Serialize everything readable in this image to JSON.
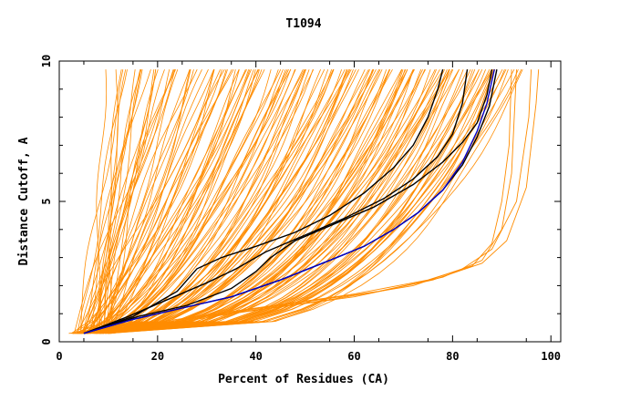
{
  "chart_data": {
    "type": "line",
    "title": "T1094",
    "xlabel": "Percent of Residues (CA)",
    "ylabel": "Distance Cutoff, A",
    "xlim": [
      0,
      102
    ],
    "ylim": [
      0,
      10
    ],
    "x_ticks": [
      0,
      20,
      40,
      60,
      80,
      100
    ],
    "y_ticks": [
      0,
      5,
      10
    ],
    "colors": {
      "background_series": "#ff8c00",
      "highlight_primary": "#0000cc",
      "highlight_secondary": "#000000"
    },
    "background_band": {
      "start_x_min": 2.5,
      "start_x_max": 10,
      "top_y": 9.7,
      "top_x_min": 10,
      "top_x_max": 93,
      "count": 160
    },
    "outlier_series": [
      {
        "points": [
          [
            7,
            0.3
          ],
          [
            20,
            0.7
          ],
          [
            40,
            1.2
          ],
          [
            60,
            1.7
          ],
          [
            75,
            2.2
          ],
          [
            84,
            2.7
          ],
          [
            88,
            3.5
          ],
          [
            90,
            5
          ],
          [
            91.5,
            7
          ],
          [
            92,
            9.7
          ]
        ]
      },
      {
        "points": [
          [
            8,
            0.3
          ],
          [
            25,
            0.8
          ],
          [
            45,
            1.3
          ],
          [
            65,
            1.8
          ],
          [
            78,
            2.3
          ],
          [
            86,
            2.9
          ],
          [
            90,
            4
          ],
          [
            92,
            6
          ],
          [
            93,
            9.7
          ]
        ]
      },
      {
        "points": [
          [
            9,
            0.3
          ],
          [
            30,
            0.9
          ],
          [
            55,
            1.5
          ],
          [
            72,
            2
          ],
          [
            82,
            2.6
          ],
          [
            88,
            3.3
          ],
          [
            93,
            5
          ],
          [
            95.5,
            8
          ],
          [
            96,
            9.7
          ]
        ]
      },
      {
        "points": [
          [
            10,
            0.3
          ],
          [
            35,
            1
          ],
          [
            60,
            1.6
          ],
          [
            76,
            2.2
          ],
          [
            86,
            2.8
          ],
          [
            91,
            3.6
          ],
          [
            95,
            5.5
          ],
          [
            97,
            8.5
          ],
          [
            97.5,
            9.7
          ]
        ]
      }
    ],
    "series": [
      {
        "color": "#0000cc",
        "points": [
          [
            5,
            0.3
          ],
          [
            15,
            0.8
          ],
          [
            25,
            1.2
          ],
          [
            35,
            1.6
          ],
          [
            45,
            2.2
          ],
          [
            55,
            2.9
          ],
          [
            62,
            3.4
          ],
          [
            68,
            4.0
          ],
          [
            73,
            4.6
          ],
          [
            78,
            5.4
          ],
          [
            82,
            6.4
          ],
          [
            85,
            7.5
          ],
          [
            87,
            8.5
          ],
          [
            88.5,
            9.7
          ]
        ]
      },
      {
        "color": "#000000",
        "points": [
          [
            5,
            0.3
          ],
          [
            15,
            0.9
          ],
          [
            24,
            1.8
          ],
          [
            28,
            2.6
          ],
          [
            33,
            3.0
          ],
          [
            40,
            3.4
          ],
          [
            48,
            3.9
          ],
          [
            55,
            4.5
          ],
          [
            62,
            5.3
          ],
          [
            68,
            6.2
          ],
          [
            72,
            7.0
          ],
          [
            75,
            8.0
          ],
          [
            77,
            9.0
          ],
          [
            78,
            9.7
          ]
        ]
      },
      {
        "color": "#000000",
        "points": [
          [
            5,
            0.3
          ],
          [
            14,
            0.9
          ],
          [
            22,
            1.5
          ],
          [
            30,
            2.1
          ],
          [
            36,
            2.6
          ],
          [
            42,
            3.2
          ],
          [
            50,
            3.8
          ],
          [
            58,
            4.4
          ],
          [
            66,
            5.1
          ],
          [
            72,
            5.8
          ],
          [
            77,
            6.6
          ],
          [
            80,
            7.4
          ],
          [
            82,
            8.5
          ],
          [
            83,
            9.7
          ]
        ]
      },
      {
        "color": "#000000",
        "points": [
          [
            5,
            0.3
          ],
          [
            16,
            0.9
          ],
          [
            26,
            1.3
          ],
          [
            35,
            1.9
          ],
          [
            40,
            2.5
          ],
          [
            43,
            3.0
          ],
          [
            48,
            3.6
          ],
          [
            56,
            4.2
          ],
          [
            64,
            4.8
          ],
          [
            72,
            5.6
          ],
          [
            78,
            6.4
          ],
          [
            82,
            7.1
          ],
          [
            85,
            7.8
          ],
          [
            87,
            8.8
          ],
          [
            88,
            9.7
          ]
        ]
      },
      {
        "color": "#000000",
        "points": [
          [
            5,
            0.3
          ],
          [
            15,
            0.8
          ],
          [
            25,
            1.2
          ],
          [
            35,
            1.6
          ],
          [
            45,
            2.2
          ],
          [
            55,
            2.9
          ],
          [
            62,
            3.4
          ],
          [
            68,
            4.0
          ],
          [
            73,
            4.6
          ],
          [
            78,
            5.4
          ],
          [
            82,
            6.3
          ],
          [
            85,
            7.3
          ],
          [
            87.5,
            8.4
          ],
          [
            89,
            9.7
          ]
        ]
      }
    ]
  }
}
